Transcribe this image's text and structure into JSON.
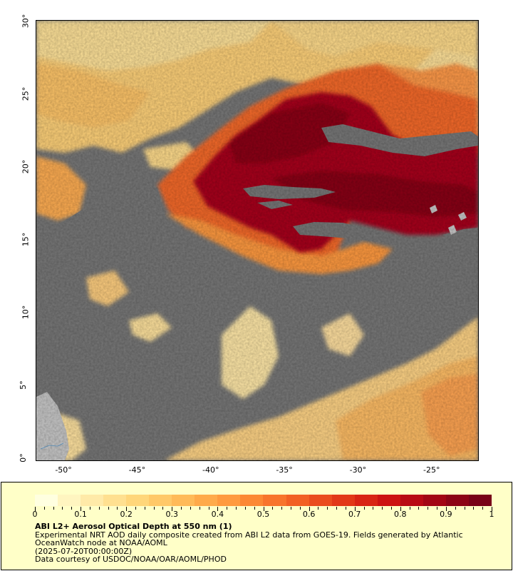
{
  "map": {
    "y_axis_labels": [
      "30°",
      "25°",
      "20°",
      "15°",
      "10°",
      "5°",
      "0°"
    ],
    "x_axis_labels": [
      "-50°",
      "-45°",
      "-40°",
      "-35°",
      "-30°",
      "-25°"
    ],
    "lat_range": [
      0,
      30
    ],
    "lon_range": [
      -52,
      -22
    ],
    "colors": {
      "land": "#c8c8c8",
      "no_data": "#787878",
      "coast": "#6fa0c8"
    }
  },
  "legend": {
    "colorbar_ticks": [
      "0",
      "0.1",
      "0.2",
      "0.3",
      "0.4",
      "0.5",
      "0.6",
      "0.7",
      "0.8",
      "0.9",
      "1"
    ],
    "colorbar_colors": [
      "#ffffe0",
      "#fff5c0",
      "#ffeaa8",
      "#ffe090",
      "#ffd67a",
      "#ffc868",
      "#ffba58",
      "#ffaa4a",
      "#ff9a3e",
      "#fc8834",
      "#f8742c",
      "#f26024",
      "#ea4c1e",
      "#e23818",
      "#d82414",
      "#cc1212",
      "#b80a14",
      "#a20614",
      "#8c0416",
      "#780218"
    ],
    "title": "ABI L2+ Aerosol Optical Depth at 550 nm (1)",
    "line1": "Experimental NRT AOD daily composite created from ABI L2 data from GOES-19. Fields generated by Atlantic",
    "line2": "OceanWatch node at NOAA/AOML",
    "line3": "(2025-07-20T00:00:00Z)",
    "line4": "Data courtesy of USDOC/NOAA/OAR/AOML/PHOD"
  }
}
